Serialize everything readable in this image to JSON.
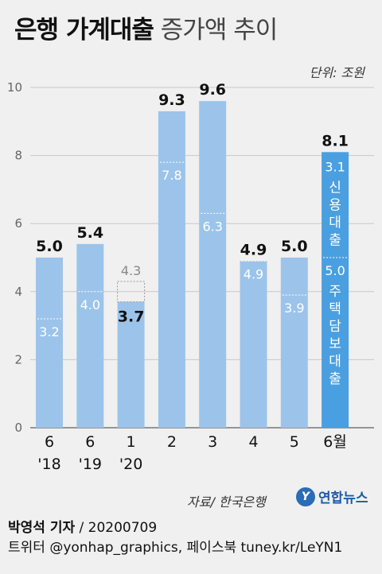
{
  "title": {
    "main": "은행 가계대출",
    "sub": "증가액 추이"
  },
  "unit": "단위: 조원",
  "source": "자료/ 한국은행",
  "logo_text": "연합뉴스",
  "footer": {
    "reporter": "박영석 기자",
    "date": "/  20200709",
    "social": "트위터 @yonhap_graphics, 페이스북 tuney.kr/LeYN1"
  },
  "colors": {
    "highlight": "#4a9fe0",
    "normal": "#9cc4ea",
    "background": "#f0f0f0",
    "value_label": "#111111",
    "ghost_label": "#888888",
    "inner_label": "#ffffff"
  },
  "chart_data": {
    "type": "bar",
    "ylim": [
      0,
      10
    ],
    "yticks": [
      0,
      2,
      4,
      6,
      8,
      10
    ],
    "grid": true,
    "categories": [
      {
        "line1": "6",
        "line2": "'18"
      },
      {
        "line1": "6",
        "line2": "'19"
      },
      {
        "line1": "1",
        "line2": "'20"
      },
      {
        "line1": "2",
        "line2": ""
      },
      {
        "line1": "3",
        "line2": ""
      },
      {
        "line1": "4",
        "line2": ""
      },
      {
        "line1": "5",
        "line2": ""
      },
      {
        "line1": "6월",
        "line2": ""
      }
    ],
    "values": [
      5.0,
      5.4,
      3.7,
      9.3,
      9.6,
      4.9,
      5.0,
      8.1
    ],
    "value_labels": [
      "5.0",
      "5.4",
      "3.7",
      "9.3",
      "9.6",
      "4.9",
      "5.0",
      "8.1"
    ],
    "mortgage": [
      3.2,
      4.0,
      4.3,
      7.8,
      6.3,
      4.9,
      3.9,
      5.0
    ],
    "mortgage_labels": [
      "3.2",
      "4.0",
      "4.3",
      "7.8",
      "6.3",
      "4.9",
      "3.9",
      "5.0"
    ],
    "highlight_index": 7,
    "ghost_index": 2,
    "highlight_segments": {
      "credit_value": "3.1",
      "credit_label": "신용대출",
      "mortgage_value": "5.0",
      "mortgage_label": "주택담보대출"
    }
  }
}
